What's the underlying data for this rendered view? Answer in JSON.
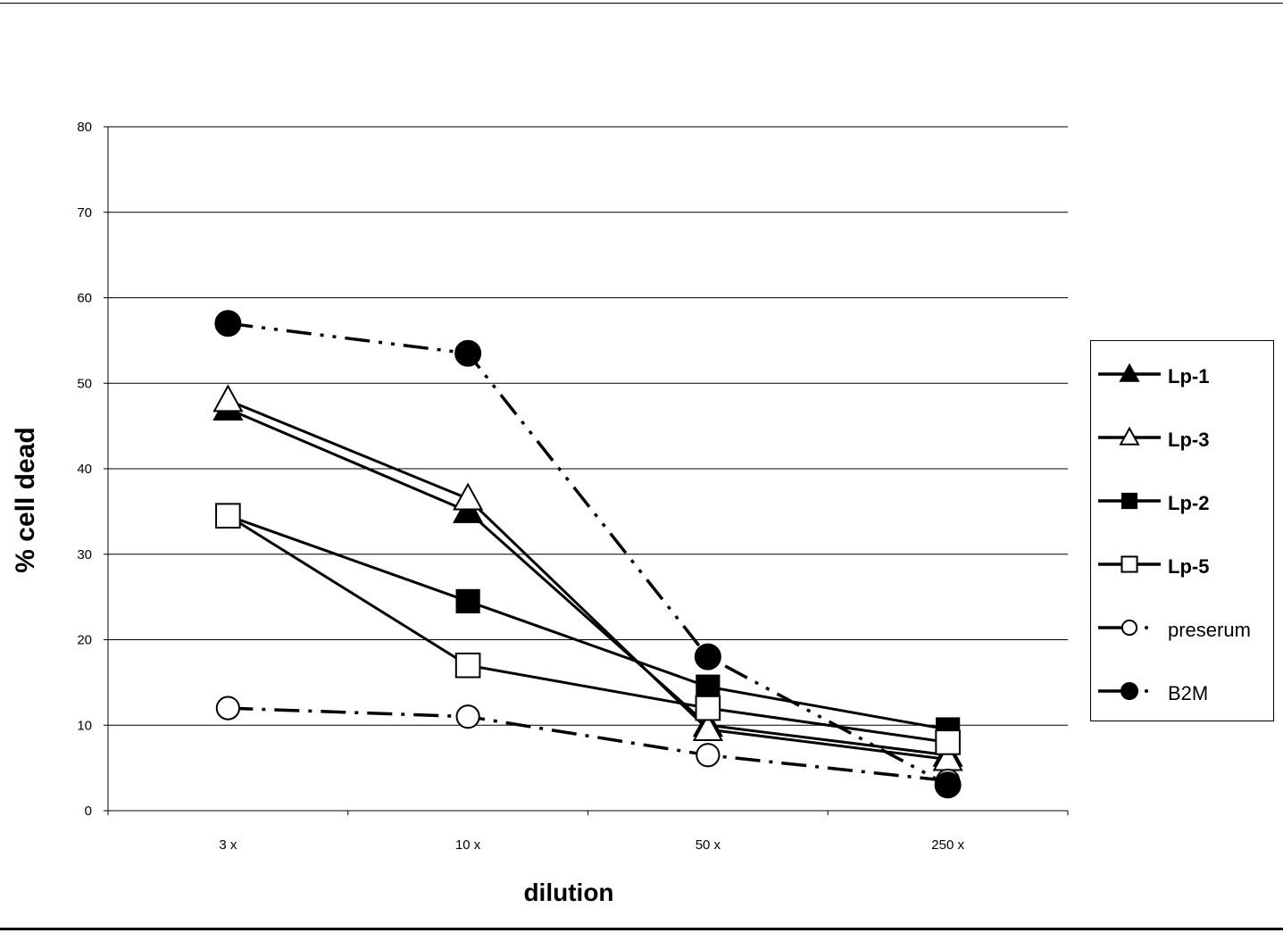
{
  "chart_data": {
    "type": "line",
    "categories": [
      "3 x",
      "10 x",
      "50 x",
      "250 x"
    ],
    "ylabel": "% cell dead",
    "xlabel": "dilution",
    "ylim": [
      0,
      80
    ],
    "yticks": [
      0,
      10,
      20,
      30,
      40,
      50,
      60,
      70,
      80
    ],
    "grid": "horizontal",
    "legend": "right",
    "series": [
      {
        "name": "Lp-1",
        "values": [
          47,
          35,
          10,
          6.5
        ],
        "marker": "triangle-filled",
        "line": "solid",
        "color": "#000000",
        "label_bold": true
      },
      {
        "name": "Lp-3",
        "values": [
          48,
          36.5,
          9.5,
          6
        ],
        "marker": "triangle-open",
        "line": "solid",
        "color": "#000000",
        "label_bold": true
      },
      {
        "name": "Lp-2",
        "values": [
          34.5,
          24.5,
          14.5,
          9.5
        ],
        "marker": "square-filled",
        "line": "solid",
        "color": "#000000",
        "label_bold": true
      },
      {
        "name": "Lp-5",
        "values": [
          34.5,
          17,
          12,
          8
        ],
        "marker": "square-open",
        "line": "solid",
        "color": "#000000",
        "label_bold": true
      },
      {
        "name": "preserum",
        "values": [
          12,
          11,
          6.5,
          3.5
        ],
        "marker": "circle-open",
        "line": "dashdot",
        "color": "#000000",
        "label_bold": false
      },
      {
        "name": "B2M",
        "values": [
          57,
          53.5,
          18,
          3
        ],
        "marker": "circle-filled",
        "line": "dashdotdot",
        "color": "#000000",
        "label_bold": false
      }
    ]
  }
}
